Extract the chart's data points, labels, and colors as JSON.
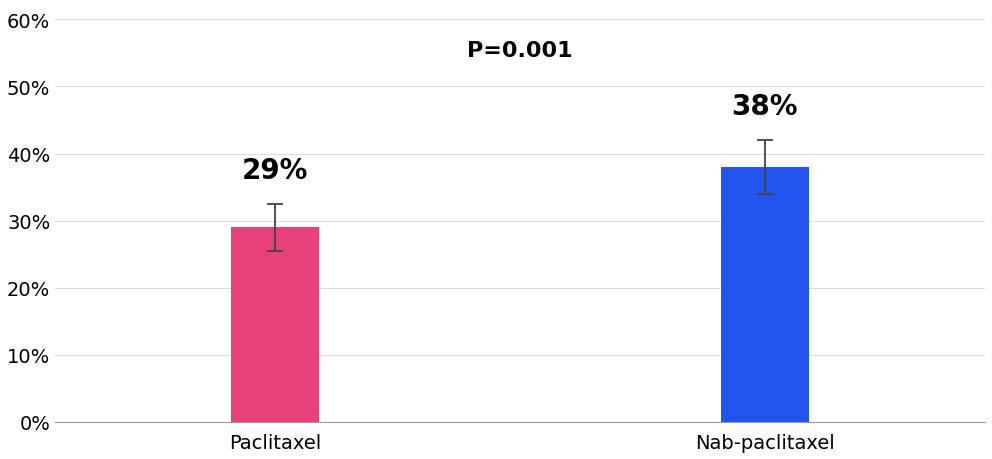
{
  "categories": [
    "Paclitaxel",
    "Nab-paclitaxel"
  ],
  "values": [
    0.29,
    0.38
  ],
  "errors_upper": [
    0.035,
    0.04
  ],
  "errors_lower": [
    0.035,
    0.04
  ],
  "bar_colors": [
    "#E8407A",
    "#2255EE"
  ],
  "bar_width": 0.18,
  "bar_positions": [
    1,
    2
  ],
  "value_labels": [
    "29%",
    "38%"
  ],
  "p_value_text": "P=0.001",
  "ylim": [
    0,
    0.62
  ],
  "yticks": [
    0.0,
    0.1,
    0.2,
    0.3,
    0.4,
    0.5,
    0.6
  ],
  "ytick_labels": [
    "0%",
    "10%",
    "20%",
    "30%",
    "40%",
    "50%",
    "60%"
  ],
  "background_color": "#FFFFFF",
  "grid_color": "#DDDDDD",
  "label_fontsize": 14,
  "value_label_fontsize": 20,
  "pvalue_fontsize": 16,
  "xlabel_fontsize": 14
}
